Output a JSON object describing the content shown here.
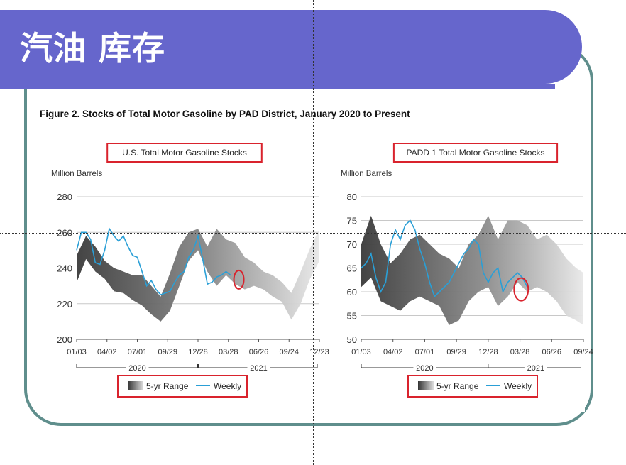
{
  "slide": {
    "title": "汽油 库存"
  },
  "figure": {
    "caption": "Figure 2. Stocks of Total Motor Gasoline by PAD District, January 2020 to Present"
  },
  "chart_data": [
    {
      "type": "area",
      "title": "U.S. Total Motor Gasoline Stocks",
      "ylabel": "Million Barrels",
      "ylim": [
        200,
        280
      ],
      "yticks": [
        200,
        220,
        240,
        260,
        280
      ],
      "xticks": [
        "01/03",
        "04/02",
        "07/01",
        "09/29",
        "12/28",
        "03/28",
        "06/26",
        "09/24",
        "12/23"
      ],
      "xlim": [
        0,
        104
      ],
      "year_labels": [
        "2020",
        "2021"
      ],
      "grid": true,
      "legend": "bottom",
      "legend_entries": [
        "5-yr Range",
        "Weekly"
      ],
      "series": [
        {
          "name": "5-yr Range",
          "x": [
            0,
            4,
            8,
            12,
            16,
            20,
            24,
            28,
            32,
            36,
            40,
            44,
            48,
            52,
            56,
            60,
            64,
            68,
            72,
            76,
            80,
            84,
            88,
            92,
            96,
            100,
            104
          ],
          "low": [
            232,
            245,
            238,
            234,
            227,
            226,
            222,
            219,
            214,
            210,
            216,
            230,
            244,
            250,
            238,
            230,
            236,
            231,
            228,
            230,
            228,
            224,
            221,
            211,
            220,
            234,
            244
          ],
          "high": [
            247,
            258,
            252,
            244,
            240,
            238,
            236,
            236,
            230,
            224,
            237,
            252,
            260,
            262,
            252,
            262,
            256,
            254,
            246,
            243,
            238,
            236,
            232,
            226,
            238,
            251,
            262
          ]
        },
        {
          "name": "Weekly",
          "x": [
            0,
            2,
            4,
            6,
            8,
            10,
            12,
            14,
            16,
            18,
            20,
            22,
            24,
            26,
            28,
            30,
            32,
            34,
            36,
            38,
            40,
            42,
            44,
            46,
            48,
            50,
            52,
            54,
            56,
            58,
            60,
            62,
            64,
            66
          ],
          "y": [
            250,
            260,
            260,
            256,
            243,
            242,
            250,
            262,
            258,
            255,
            258,
            252,
            247,
            246,
            238,
            230,
            233,
            228,
            225,
            226,
            227,
            232,
            236,
            238,
            246,
            250,
            258,
            245,
            231,
            232,
            235,
            236,
            238,
            236
          ]
        }
      ],
      "annotation": "circle"
    },
    {
      "type": "area",
      "title": "PADD 1 Total Motor Gasoline Stocks",
      "ylabel": "Million Barrels",
      "ylim": [
        50,
        80
      ],
      "yticks": [
        50,
        55,
        60,
        65,
        70,
        75,
        80
      ],
      "xticks": [
        "01/03",
        "04/02",
        "07/01",
        "09/29",
        "12/28",
        "03/28",
        "06/26",
        "09/24"
      ],
      "xlim": [
        0,
        91
      ],
      "year_labels": [
        "2020",
        "2021"
      ],
      "grid": true,
      "legend": "bottom",
      "legend_entries": [
        "5-yr Range",
        "Weekly"
      ],
      "series": [
        {
          "name": "5-yr Range",
          "x": [
            0,
            4,
            8,
            12,
            16,
            20,
            24,
            28,
            32,
            36,
            40,
            44,
            48,
            52,
            56,
            60,
            64,
            68,
            72,
            76,
            80,
            84,
            88,
            91
          ],
          "low": [
            61,
            63,
            58,
            57,
            56,
            58,
            59,
            58,
            57,
            53,
            54,
            58,
            60,
            61,
            57,
            59,
            62,
            60,
            61,
            60,
            58,
            55,
            54,
            53
          ],
          "high": [
            70,
            76,
            70,
            66,
            68,
            71,
            72,
            70,
            68,
            67,
            65,
            70,
            72,
            76,
            71,
            75,
            75,
            74,
            71,
            72,
            70,
            67,
            65,
            64
          ]
        },
        {
          "name": "Weekly",
          "x": [
            0,
            2,
            4,
            6,
            8,
            10,
            12,
            14,
            16,
            18,
            20,
            22,
            24,
            26,
            28,
            30,
            32,
            34,
            36,
            38,
            40,
            42,
            44,
            46,
            48,
            50,
            52,
            54,
            56,
            58,
            60,
            62,
            64,
            66,
            68
          ],
          "y": [
            65,
            66,
            68,
            63,
            60,
            62,
            70,
            73,
            71,
            74,
            75,
            73,
            69,
            66,
            62,
            59,
            60,
            61,
            62,
            64,
            66,
            68,
            69,
            71,
            70,
            64,
            62,
            64,
            65,
            60,
            62,
            63,
            64,
            63,
            61
          ]
        }
      ],
      "annotation": "circle"
    }
  ]
}
